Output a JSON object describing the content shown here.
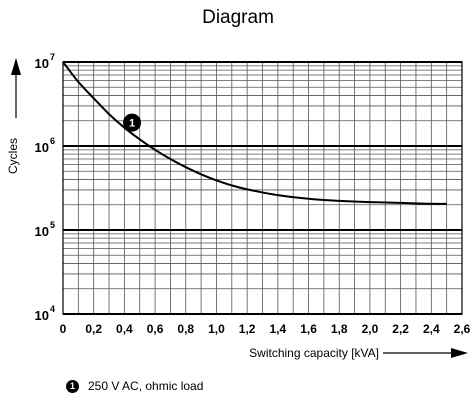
{
  "title": "Diagram",
  "chart_data": {
    "type": "line",
    "title": "Diagram",
    "xlabel": "Switching capacity [kVA]",
    "ylabel": "Cycles",
    "x_ticks": [
      "0",
      "0,2",
      "0,4",
      "0,6",
      "0,8",
      "1,0",
      "1,2",
      "1,4",
      "1,6",
      "1,8",
      "2,0",
      "2,2",
      "2,4",
      "2,6"
    ],
    "y_scale": "log",
    "y_ticks": [
      {
        "value": 10000,
        "base": "10",
        "exp": "4"
      },
      {
        "value": 100000,
        "base": "10",
        "exp": "5"
      },
      {
        "value": 1000000,
        "base": "10",
        "exp": "6"
      },
      {
        "value": 10000000,
        "base": "10",
        "exp": "7"
      }
    ],
    "xlim": [
      0,
      2.6
    ],
    "ylim": [
      10000,
      10000000
    ],
    "grid": true,
    "series": [
      {
        "marker": "1",
        "x": [
          0,
          0.1,
          0.2,
          0.3,
          0.4,
          0.5,
          0.6,
          0.7,
          0.8,
          0.9,
          1.0,
          1.1,
          1.2,
          1.4,
          1.6,
          1.8,
          2.0,
          2.2,
          2.4,
          2.5
        ],
        "y": [
          10000000,
          5800000,
          3700000,
          2400000,
          1650000,
          1200000,
          900000,
          700000,
          560000,
          460000,
          390000,
          340000,
          305000,
          260000,
          235000,
          222000,
          215000,
          210000,
          205000,
          205000
        ]
      }
    ],
    "annotations": [
      {
        "marker": "1",
        "x": 0.45,
        "y": 1900000
      }
    ],
    "legend": [
      {
        "marker": "1",
        "text": "250 V AC, ohmic load"
      }
    ]
  }
}
